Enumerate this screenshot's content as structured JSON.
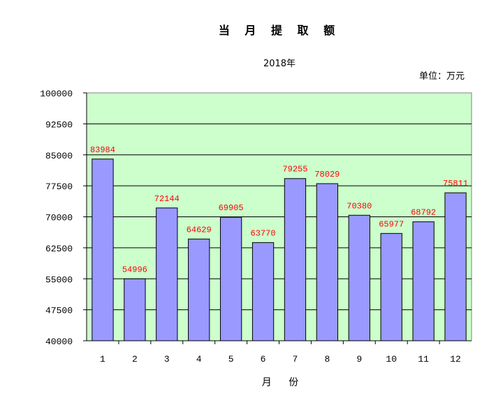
{
  "chart_data": {
    "type": "bar",
    "title": "当 月 提 取 额",
    "subtitle": "2018年",
    "unit_label": "单位：万元",
    "xlabel": "月 份",
    "categories": [
      "1",
      "2",
      "3",
      "4",
      "5",
      "6",
      "7",
      "8",
      "9",
      "10",
      "11",
      "12"
    ],
    "values": [
      83984,
      54996,
      72144,
      64629,
      69905,
      63770,
      79255,
      78029,
      70380,
      65977,
      68792,
      75811
    ],
    "ylim": [
      40000,
      100000
    ],
    "yticks": [
      40000,
      47500,
      55000,
      62500,
      70000,
      77500,
      85000,
      92500,
      100000
    ],
    "grid": true,
    "legend": "none",
    "colors": {
      "plot_bg": "#ccffcc",
      "bar": "#9999ff",
      "label": "#ff0000"
    }
  }
}
